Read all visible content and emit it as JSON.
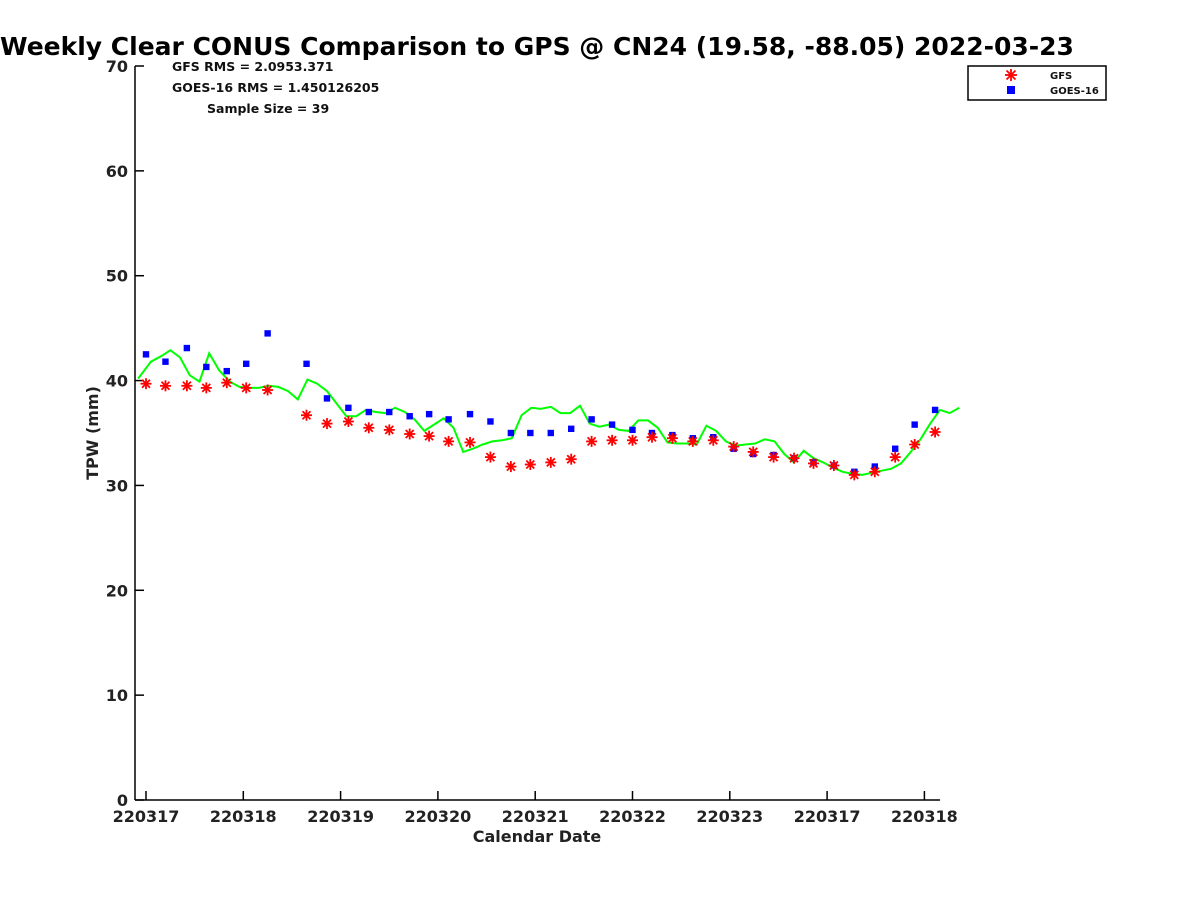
{
  "chart_data": {
    "type": "scatter",
    "title": "Weekly Clear CONUS Comparison to GPS @ CN24 (19.58, -88.05) 2022-03-23",
    "xlabel": "Calendar Date",
    "ylabel": "TPW (mm)",
    "ylim": [
      0,
      70
    ],
    "yticks": [
      0,
      10,
      20,
      30,
      40,
      50,
      60,
      70
    ],
    "xticks": [
      "220317",
      "220318",
      "220319",
      "220320",
      "220321",
      "220322",
      "220323",
      "220317",
      "220318"
    ],
    "grid": false,
    "legend_position": "top-right",
    "stats": [
      "GFS RMS = 2.0953.371",
      "GOES-16 RMS = 1.450126205",
      "Sample Size = 39"
    ],
    "series": [
      {
        "name": "GFS",
        "kind": "marker-asterisk",
        "color": "#ff0000",
        "points": [
          [
            0.0,
            39.7
          ],
          [
            0.2,
            39.5
          ],
          [
            0.42,
            39.5
          ],
          [
            0.62,
            39.3
          ],
          [
            0.83,
            39.8
          ],
          [
            1.03,
            39.3
          ],
          [
            1.25,
            39.1
          ],
          [
            1.65,
            36.7
          ],
          [
            1.86,
            35.9
          ],
          [
            2.08,
            36.1
          ],
          [
            2.29,
            35.5
          ],
          [
            2.5,
            35.3
          ],
          [
            2.71,
            34.9
          ],
          [
            2.91,
            34.7
          ],
          [
            3.11,
            34.2
          ],
          [
            3.33,
            34.1
          ],
          [
            3.54,
            32.7
          ],
          [
            3.75,
            31.8
          ],
          [
            3.95,
            32.0
          ],
          [
            4.16,
            32.2
          ],
          [
            4.37,
            32.5
          ],
          [
            4.58,
            34.2
          ],
          [
            4.79,
            34.3
          ],
          [
            5.0,
            34.3
          ],
          [
            5.2,
            34.6
          ],
          [
            5.41,
            34.5
          ],
          [
            5.62,
            34.2
          ],
          [
            5.83,
            34.3
          ],
          [
            6.04,
            33.7
          ],
          [
            6.24,
            33.2
          ],
          [
            6.45,
            32.7
          ],
          [
            6.66,
            32.6
          ],
          [
            6.86,
            32.1
          ],
          [
            7.07,
            31.9
          ],
          [
            7.28,
            31.0
          ],
          [
            7.49,
            31.3
          ],
          [
            7.7,
            32.7
          ],
          [
            7.9,
            33.9
          ],
          [
            8.11,
            35.1
          ]
        ]
      },
      {
        "name": "GOES-16",
        "kind": "marker-square",
        "color": "#0000ff",
        "points": [
          [
            0.0,
            42.5
          ],
          [
            0.2,
            41.8
          ],
          [
            0.42,
            43.1
          ],
          [
            0.62,
            41.3
          ],
          [
            0.83,
            40.9
          ],
          [
            1.03,
            41.6
          ],
          [
            1.25,
            44.5
          ],
          [
            1.65,
            41.6
          ],
          [
            1.86,
            38.3
          ],
          [
            2.08,
            37.4
          ],
          [
            2.29,
            37.0
          ],
          [
            2.5,
            37.0
          ],
          [
            2.71,
            36.6
          ],
          [
            2.91,
            36.8
          ],
          [
            3.11,
            36.3
          ],
          [
            3.33,
            36.8
          ],
          [
            3.54,
            36.1
          ],
          [
            3.75,
            35.0
          ],
          [
            3.95,
            35.0
          ],
          [
            4.16,
            35.0
          ],
          [
            4.37,
            35.4
          ],
          [
            4.58,
            36.3
          ],
          [
            4.79,
            35.8
          ],
          [
            5.0,
            35.3
          ],
          [
            5.2,
            35.0
          ],
          [
            5.41,
            34.8
          ],
          [
            5.62,
            34.5
          ],
          [
            5.83,
            34.6
          ],
          [
            6.04,
            33.5
          ],
          [
            6.24,
            33.0
          ],
          [
            6.45,
            32.9
          ],
          [
            6.66,
            32.6
          ],
          [
            6.86,
            32.2
          ],
          [
            7.07,
            31.9
          ],
          [
            7.28,
            31.3
          ],
          [
            7.49,
            31.8
          ],
          [
            7.7,
            33.5
          ],
          [
            7.9,
            35.8
          ],
          [
            8.11,
            37.2
          ]
        ]
      },
      {
        "name": "",
        "kind": "line",
        "color": "#00ff00",
        "points": [
          [
            -0.08,
            40.2
          ],
          [
            0.05,
            41.8
          ],
          [
            0.17,
            42.4
          ],
          [
            0.25,
            42.9
          ],
          [
            0.35,
            42.2
          ],
          [
            0.45,
            40.5
          ],
          [
            0.55,
            39.9
          ],
          [
            0.65,
            42.6
          ],
          [
            0.75,
            41.0
          ],
          [
            0.86,
            39.9
          ],
          [
            0.96,
            39.4
          ],
          [
            1.06,
            39.3
          ],
          [
            1.16,
            39.3
          ],
          [
            1.26,
            39.5
          ],
          [
            1.36,
            39.4
          ],
          [
            1.46,
            39.0
          ],
          [
            1.56,
            38.2
          ],
          [
            1.66,
            40.1
          ],
          [
            1.76,
            39.7
          ],
          [
            1.86,
            39.0
          ],
          [
            1.96,
            37.8
          ],
          [
            2.06,
            36.6
          ],
          [
            2.16,
            36.6
          ],
          [
            2.26,
            37.2
          ],
          [
            2.36,
            37.0
          ],
          [
            2.46,
            36.9
          ],
          [
            2.56,
            37.4
          ],
          [
            2.66,
            37.0
          ],
          [
            2.76,
            36.3
          ],
          [
            2.86,
            35.2
          ],
          [
            2.96,
            35.8
          ],
          [
            3.06,
            36.4
          ],
          [
            3.16,
            35.5
          ],
          [
            3.26,
            33.2
          ],
          [
            3.36,
            33.5
          ],
          [
            3.46,
            33.9
          ],
          [
            3.56,
            34.2
          ],
          [
            3.66,
            34.3
          ],
          [
            3.76,
            34.5
          ],
          [
            3.86,
            36.7
          ],
          [
            3.96,
            37.4
          ],
          [
            4.06,
            37.3
          ],
          [
            4.16,
            37.5
          ],
          [
            4.26,
            36.9
          ],
          [
            4.36,
            36.9
          ],
          [
            4.46,
            37.6
          ],
          [
            4.56,
            35.9
          ],
          [
            4.66,
            35.6
          ],
          [
            4.76,
            35.8
          ],
          [
            4.86,
            35.3
          ],
          [
            4.96,
            35.2
          ],
          [
            5.06,
            36.2
          ],
          [
            5.16,
            36.2
          ],
          [
            5.26,
            35.5
          ],
          [
            5.36,
            34.1
          ],
          [
            5.46,
            34.0
          ],
          [
            5.56,
            34.0
          ],
          [
            5.66,
            33.9
          ],
          [
            5.76,
            35.7
          ],
          [
            5.86,
            35.2
          ],
          [
            5.96,
            34.2
          ],
          [
            6.06,
            33.8
          ],
          [
            6.16,
            33.9
          ],
          [
            6.26,
            34.0
          ],
          [
            6.36,
            34.4
          ],
          [
            6.46,
            34.2
          ],
          [
            6.56,
            33.0
          ],
          [
            6.66,
            32.2
          ],
          [
            6.76,
            33.3
          ],
          [
            6.86,
            32.6
          ],
          [
            6.96,
            32.2
          ],
          [
            7.06,
            31.7
          ],
          [
            7.16,
            31.3
          ],
          [
            7.26,
            31.1
          ],
          [
            7.36,
            31.0
          ],
          [
            7.46,
            31.2
          ],
          [
            7.56,
            31.4
          ],
          [
            7.66,
            31.6
          ],
          [
            7.76,
            32.1
          ],
          [
            7.86,
            33.2
          ],
          [
            7.96,
            34.4
          ],
          [
            8.06,
            35.9
          ],
          [
            8.16,
            37.2
          ],
          [
            8.26,
            36.9
          ],
          [
            8.36,
            37.4
          ]
        ]
      }
    ]
  }
}
